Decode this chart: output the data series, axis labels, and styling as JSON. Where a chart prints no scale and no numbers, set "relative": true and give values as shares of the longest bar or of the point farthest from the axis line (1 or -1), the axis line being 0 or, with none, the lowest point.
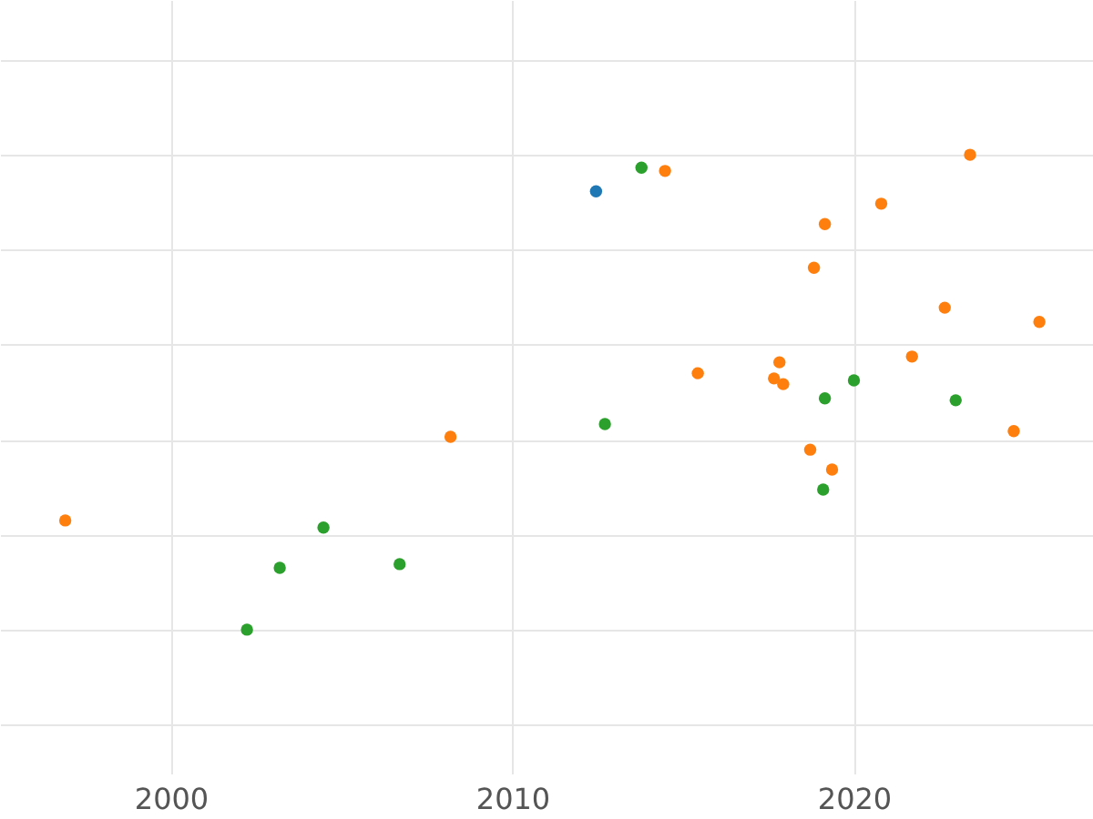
{
  "chart_data": {
    "type": "scatter",
    "relative": true,
    "xlim": [
      1995,
      2027
    ],
    "xticks": [
      2000,
      2010,
      2020
    ],
    "grid": true,
    "marker": "circle",
    "series": [
      {
        "color": "#1f77b4",
        "x": [
          2012.45
        ],
        "values": [
          0.923
        ]
      },
      {
        "color": "#2ca02c",
        "x": [
          2013.78,
          2012.71,
          2019.15,
          2020.0,
          2022.98,
          2019.1,
          2004.47,
          2003.19,
          2006.7,
          2002.23
        ],
        "values": [
          0.973,
          0.433,
          0.487,
          0.525,
          0.483,
          0.295,
          0.215,
          0.13,
          0.138,
          0
        ]
      },
      {
        "color": "#ff7f0e",
        "x": [
          2014.47,
          2023.4,
          2020.8,
          2019.15,
          2018.83,
          2022.66,
          2025.43,
          2021.7,
          2017.82,
          2015.43,
          2017.66,
          2017.93,
          2008.19,
          2024.68,
          2018.72,
          2019.36,
          1996.91
        ],
        "values": [
          0.966,
          1,
          0.897,
          0.854,
          0.762,
          0.678,
          0.648,
          0.575,
          0.563,
          0.54,
          0.529,
          0.517,
          0.406,
          0.418,
          0.379,
          0.337,
          0.23
        ]
      }
    ]
  }
}
